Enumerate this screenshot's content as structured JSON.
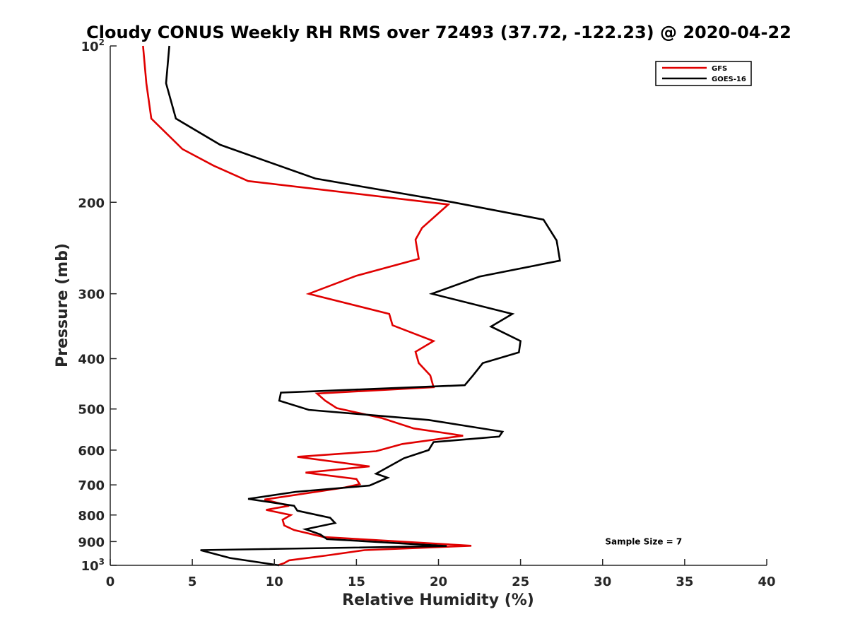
{
  "chart_data": {
    "type": "line",
    "title": "Cloudy CONUS Weekly RH RMS over 72493 (37.72, -122.23) @ 2020-04-22",
    "xlabel": "Relative Humidity (%)",
    "ylabel": "Pressure (mb)",
    "xlim": [
      0,
      40
    ],
    "ylim": [
      100,
      1000
    ],
    "y_scale": "log",
    "y_reversed": true,
    "x_ticks": [
      0,
      5,
      10,
      15,
      20,
      25,
      30,
      35,
      40
    ],
    "x_tick_labels": [
      "0",
      "5",
      "10",
      "15",
      "20",
      "25",
      "30",
      "35",
      "40"
    ],
    "y_ticks": [
      100,
      200,
      300,
      400,
      500,
      600,
      700,
      800,
      900,
      1000
    ],
    "y_tick_labels": [
      {
        "base": "10",
        "sup": "2"
      },
      {
        "base": "200",
        "sup": ""
      },
      {
        "base": "300",
        "sup": ""
      },
      {
        "base": "400",
        "sup": ""
      },
      {
        "base": "500",
        "sup": ""
      },
      {
        "base": "600",
        "sup": ""
      },
      {
        "base": "700",
        "sup": ""
      },
      {
        "base": "800",
        "sup": ""
      },
      {
        "base": "900",
        "sup": ""
      },
      {
        "base": "10",
        "sup": "3"
      }
    ],
    "grid": false,
    "legend_position": "top-right",
    "series": [
      {
        "name": "GFS",
        "color": "#e00000",
        "points": [
          {
            "x": 2.0,
            "y": 100
          },
          {
            "x": 2.2,
            "y": 118
          },
          {
            "x": 2.5,
            "y": 138
          },
          {
            "x": 4.4,
            "y": 158
          },
          {
            "x": 6.3,
            "y": 170
          },
          {
            "x": 8.4,
            "y": 182
          },
          {
            "x": 20.6,
            "y": 202
          },
          {
            "x": 19.0,
            "y": 224
          },
          {
            "x": 18.6,
            "y": 236
          },
          {
            "x": 18.8,
            "y": 257
          },
          {
            "x": 15.0,
            "y": 277
          },
          {
            "x": 12.1,
            "y": 300
          },
          {
            "x": 17.0,
            "y": 328
          },
          {
            "x": 17.2,
            "y": 345
          },
          {
            "x": 19.7,
            "y": 370
          },
          {
            "x": 18.6,
            "y": 388
          },
          {
            "x": 18.8,
            "y": 408
          },
          {
            "x": 19.5,
            "y": 431
          },
          {
            "x": 19.7,
            "y": 454
          },
          {
            "x": 12.6,
            "y": 467
          },
          {
            "x": 13.1,
            "y": 482
          },
          {
            "x": 13.8,
            "y": 498
          },
          {
            "x": 16.5,
            "y": 520
          },
          {
            "x": 18.5,
            "y": 545
          },
          {
            "x": 21.5,
            "y": 563
          },
          {
            "x": 17.8,
            "y": 584
          },
          {
            "x": 16.2,
            "y": 603
          },
          {
            "x": 11.4,
            "y": 618
          },
          {
            "x": 15.8,
            "y": 645
          },
          {
            "x": 11.9,
            "y": 663
          },
          {
            "x": 15.0,
            "y": 682
          },
          {
            "x": 15.2,
            "y": 698
          },
          {
            "x": 14.3,
            "y": 708
          },
          {
            "x": 9.4,
            "y": 747
          },
          {
            "x": 10.9,
            "y": 768
          },
          {
            "x": 9.5,
            "y": 782
          },
          {
            "x": 11.0,
            "y": 800
          },
          {
            "x": 10.5,
            "y": 817
          },
          {
            "x": 10.6,
            "y": 838
          },
          {
            "x": 11.2,
            "y": 855
          },
          {
            "x": 13.0,
            "y": 882
          },
          {
            "x": 22.0,
            "y": 917
          },
          {
            "x": 15.5,
            "y": 935
          },
          {
            "x": 13.2,
            "y": 957
          },
          {
            "x": 10.9,
            "y": 978
          },
          {
            "x": 10.6,
            "y": 990
          },
          {
            "x": 10.2,
            "y": 1000
          }
        ]
      },
      {
        "name": "GOES-16",
        "color": "#000000",
        "points": [
          {
            "x": 3.6,
            "y": 100
          },
          {
            "x": 3.4,
            "y": 118
          },
          {
            "x": 4.0,
            "y": 138
          },
          {
            "x": 6.7,
            "y": 155
          },
          {
            "x": 12.5,
            "y": 180
          },
          {
            "x": 20.9,
            "y": 200
          },
          {
            "x": 26.4,
            "y": 216
          },
          {
            "x": 27.2,
            "y": 237
          },
          {
            "x": 27.4,
            "y": 259
          },
          {
            "x": 22.5,
            "y": 278
          },
          {
            "x": 19.6,
            "y": 300
          },
          {
            "x": 24.5,
            "y": 328
          },
          {
            "x": 23.2,
            "y": 347
          },
          {
            "x": 25.0,
            "y": 370
          },
          {
            "x": 24.9,
            "y": 389
          },
          {
            "x": 22.7,
            "y": 408
          },
          {
            "x": 22.1,
            "y": 431
          },
          {
            "x": 21.6,
            "y": 450
          },
          {
            "x": 10.4,
            "y": 465
          },
          {
            "x": 10.3,
            "y": 482
          },
          {
            "x": 12.1,
            "y": 502
          },
          {
            "x": 19.4,
            "y": 525
          },
          {
            "x": 23.9,
            "y": 553
          },
          {
            "x": 23.7,
            "y": 565
          },
          {
            "x": 19.7,
            "y": 579
          },
          {
            "x": 19.4,
            "y": 600
          },
          {
            "x": 17.9,
            "y": 622
          },
          {
            "x": 17.0,
            "y": 645
          },
          {
            "x": 16.2,
            "y": 666
          },
          {
            "x": 16.9,
            "y": 678
          },
          {
            "x": 15.8,
            "y": 702
          },
          {
            "x": 11.3,
            "y": 722
          },
          {
            "x": 8.4,
            "y": 745
          },
          {
            "x": 11.2,
            "y": 768
          },
          {
            "x": 11.4,
            "y": 785
          },
          {
            "x": 13.4,
            "y": 810
          },
          {
            "x": 13.7,
            "y": 829
          },
          {
            "x": 11.9,
            "y": 852
          },
          {
            "x": 12.8,
            "y": 872
          },
          {
            "x": 13.2,
            "y": 890
          },
          {
            "x": 20.5,
            "y": 918
          },
          {
            "x": 5.5,
            "y": 935
          },
          {
            "x": 7.3,
            "y": 968
          },
          {
            "x": 10.3,
            "y": 1000
          }
        ]
      }
    ],
    "annotations": [
      {
        "text": "Sample Size = 7",
        "x": 32.5,
        "y": 900
      }
    ]
  }
}
